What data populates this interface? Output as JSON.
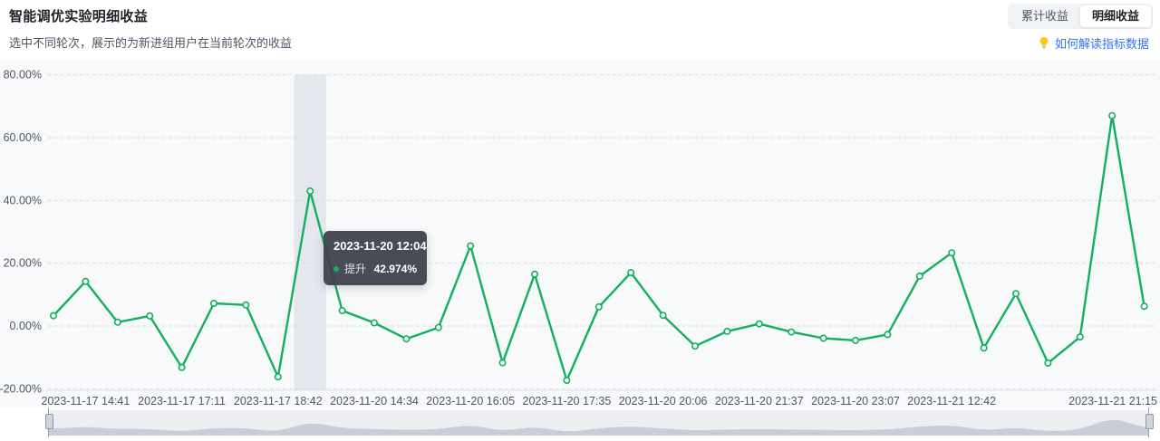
{
  "header": {
    "title": "智能调优实验明细收益",
    "subtitle": "选中不同轮次，展示的为新进组用户在当前轮次的收益"
  },
  "toolbar": {
    "options": [
      {
        "label": "累计收益",
        "active": false
      },
      {
        "label": "明细收益",
        "active": true
      }
    ]
  },
  "help": {
    "label": "如何解读指标数据",
    "icon": "lightbulb-icon",
    "link_color": "#3370ff",
    "bulb_color": "#ffc60a"
  },
  "tooltip": {
    "title": "2023-11-20 12:04",
    "series": "提升",
    "value": "42.974%"
  },
  "chart_data": {
    "type": "line",
    "series_name": "提升",
    "unit": "%",
    "values": [
      3.3,
      14.2,
      1.2,
      3.2,
      -13.2,
      7.2,
      6.7,
      -16.2,
      42.974,
      4.9,
      1.0,
      -4.1,
      -0.5,
      25.5,
      -11.7,
      16.5,
      -17.3,
      6.1,
      17.0,
      3.4,
      -6.4,
      -1.7,
      0.7,
      -1.9,
      -3.9,
      -4.6,
      -2.7,
      15.9,
      23.3,
      -7.0,
      10.3,
      -11.8,
      -3.5,
      67.0,
      6.3
    ],
    "highlight_index": 8,
    "highlight_label": "2023-11-20 12:04",
    "highlight_value": "42.974%",
    "x_ticks": [
      {
        "index": 1,
        "label": "2023-11-17 14:41"
      },
      {
        "index": 4,
        "label": "2023-11-17 17:11"
      },
      {
        "index": 7,
        "label": "2023-11-17 18:42"
      },
      {
        "index": 10,
        "label": "2023-11-20 14:34"
      },
      {
        "index": 13,
        "label": "2023-11-20 16:05"
      },
      {
        "index": 16,
        "label": "2023-11-20 17:35"
      },
      {
        "index": 19,
        "label": "2023-11-20 20:06"
      },
      {
        "index": 22,
        "label": "2023-11-20 21:37"
      },
      {
        "index": 25,
        "label": "2023-11-20 23:07"
      },
      {
        "index": 28,
        "label": "2023-11-21 12:42"
      },
      {
        "index": 34,
        "label": "2023-11-21 21:15",
        "align": "right"
      }
    ],
    "y_ticks": [
      {
        "value": 80,
        "label": "80.00%"
      },
      {
        "value": 60,
        "label": "60.00%"
      },
      {
        "value": 40,
        "label": "40.00%"
      },
      {
        "value": 20,
        "label": "20.00%"
      },
      {
        "value": 0,
        "label": "0.00%"
      },
      {
        "value": -20,
        "label": "-20.00%"
      }
    ],
    "ylim": [
      -20,
      80
    ],
    "grid": true,
    "legend": "none",
    "line_color": "#12b05f",
    "marker_fill": "#ffffff",
    "axis_label_color": "#51565e",
    "grid_color": "#d9dbe1",
    "band_color": "rgba(203,208,219,0.45)",
    "plot_bg": "#f8f9fb",
    "datazoom_bg": "#edeff3",
    "datazoom_fill": "#c9cdd8"
  }
}
